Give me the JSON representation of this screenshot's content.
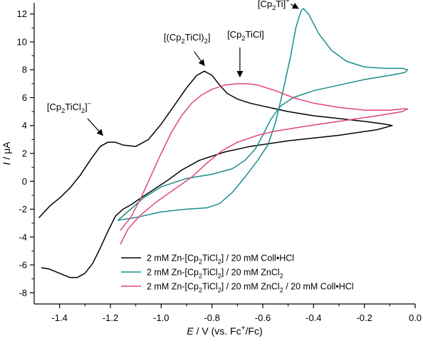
{
  "chart_data": {
    "type": "line",
    "xlabel_parts": [
      "E",
      " / V (vs. Fc",
      "+",
      "/Fc)"
    ],
    "ylabel_parts": [
      "I",
      " / μA"
    ],
    "xlim": [
      -1.5,
      0.0
    ],
    "ylim": [
      -8.8,
      12.8
    ],
    "xticks": [
      -1.4,
      -1.2,
      -1.0,
      -0.8,
      -0.6,
      -0.4,
      -0.2,
      0.0
    ],
    "xtick_labels": [
      "-1.4",
      "-1.2",
      "-1.0",
      "-0.8",
      "-0.6",
      "-0.4",
      "-0.2",
      "0.0"
    ],
    "yticks": [
      -8,
      -6,
      -4,
      -2,
      0,
      2,
      4,
      6,
      8,
      10,
      12
    ],
    "ytick_labels": [
      "-8",
      "-6",
      "-4",
      "-2",
      "0",
      "2",
      "4",
      "6",
      "8",
      "10",
      "12"
    ],
    "grid": false,
    "legend_position": "bottom-right",
    "series": [
      {
        "name_parts": [
          "2 mM Zn-[Cp",
          "2",
          "TiCl",
          "2",
          "] / 20 mM Coll•HCl"
        ],
        "color": "#000000",
        "points": [
          [
            -1.48,
            -2.6
          ],
          [
            -1.44,
            -1.8
          ],
          [
            -1.4,
            -1.2
          ],
          [
            -1.36,
            -0.5
          ],
          [
            -1.32,
            0.4
          ],
          [
            -1.28,
            1.5
          ],
          [
            -1.24,
            2.5
          ],
          [
            -1.21,
            2.8
          ],
          [
            -1.18,
            2.8
          ],
          [
            -1.15,
            2.6
          ],
          [
            -1.1,
            2.5
          ],
          [
            -1.05,
            3.0
          ],
          [
            -1.0,
            4.1
          ],
          [
            -0.95,
            5.4
          ],
          [
            -0.9,
            6.7
          ],
          [
            -0.86,
            7.6
          ],
          [
            -0.83,
            7.9
          ],
          [
            -0.8,
            7.6
          ],
          [
            -0.77,
            6.9
          ],
          [
            -0.74,
            6.3
          ],
          [
            -0.7,
            5.9
          ],
          [
            -0.65,
            5.6
          ],
          [
            -0.6,
            5.4
          ],
          [
            -0.5,
            5.0
          ],
          [
            -0.4,
            4.7
          ],
          [
            -0.3,
            4.5
          ],
          [
            -0.2,
            4.3
          ],
          [
            -0.12,
            4.1
          ],
          [
            -0.09,
            4.0
          ],
          [
            -0.15,
            3.7
          ],
          [
            -0.3,
            3.3
          ],
          [
            -0.5,
            2.9
          ],
          [
            -0.65,
            2.5
          ],
          [
            -0.75,
            2.1
          ],
          [
            -0.85,
            1.5
          ],
          [
            -0.92,
            0.8
          ],
          [
            -0.98,
            0.0
          ],
          [
            -1.03,
            -0.6
          ],
          [
            -1.08,
            -1.2
          ],
          [
            -1.12,
            -1.7
          ],
          [
            -1.15,
            -2.0
          ],
          [
            -1.18,
            -2.5
          ],
          [
            -1.21,
            -3.6
          ],
          [
            -1.24,
            -4.8
          ],
          [
            -1.27,
            -5.9
          ],
          [
            -1.3,
            -6.6
          ],
          [
            -1.33,
            -6.9
          ],
          [
            -1.36,
            -6.9
          ],
          [
            -1.4,
            -6.6
          ],
          [
            -1.44,
            -6.3
          ],
          [
            -1.47,
            -6.2
          ]
        ]
      },
      {
        "name_parts": [
          "2 mM Zn-[Cp",
          "2",
          "TiCl",
          "2",
          "] / 20 mM ZnCl",
          "2",
          ""
        ],
        "color": "#1a8c8c",
        "points": [
          [
            -1.17,
            -2.8
          ],
          [
            -1.1,
            -2.6
          ],
          [
            -1.0,
            -2.2
          ],
          [
            -0.9,
            -2.0
          ],
          [
            -0.82,
            -1.9
          ],
          [
            -0.77,
            -1.6
          ],
          [
            -0.72,
            -0.8
          ],
          [
            -0.67,
            0.3
          ],
          [
            -0.62,
            1.5
          ],
          [
            -0.58,
            2.6
          ],
          [
            -0.55,
            4.2
          ],
          [
            -0.52,
            6.5
          ],
          [
            -0.49,
            9.0
          ],
          [
            -0.47,
            11.0
          ],
          [
            -0.45,
            12.2
          ],
          [
            -0.44,
            12.4
          ],
          [
            -0.42,
            12.0
          ],
          [
            -0.38,
            10.6
          ],
          [
            -0.33,
            9.4
          ],
          [
            -0.27,
            8.6
          ],
          [
            -0.2,
            8.2
          ],
          [
            -0.12,
            8.1
          ],
          [
            -0.05,
            8.1
          ],
          [
            -0.03,
            8.0
          ],
          [
            -0.04,
            7.8
          ],
          [
            -0.1,
            7.6
          ],
          [
            -0.2,
            7.3
          ],
          [
            -0.3,
            6.9
          ],
          [
            -0.4,
            6.5
          ],
          [
            -0.48,
            6.0
          ],
          [
            -0.53,
            5.4
          ],
          [
            -0.57,
            4.4
          ],
          [
            -0.6,
            3.3
          ],
          [
            -0.63,
            2.3
          ],
          [
            -0.67,
            1.5
          ],
          [
            -0.72,
            0.9
          ],
          [
            -0.8,
            0.5
          ],
          [
            -0.9,
            0.2
          ],
          [
            -1.0,
            -0.4
          ],
          [
            -1.07,
            -1.2
          ],
          [
            -1.12,
            -2.0
          ],
          [
            -1.17,
            -2.8
          ]
        ]
      },
      {
        "name_parts": [
          "2 mM Zn-[Cp",
          "2",
          "TiCl",
          "2",
          "] / 20 mM ZnCl",
          "2",
          " / 20 mM Coll•HCl"
        ],
        "color": "#e0457a",
        "points": [
          [
            -1.16,
            -3.5
          ],
          [
            -1.12,
            -2.6
          ],
          [
            -1.08,
            -1.2
          ],
          [
            -1.04,
            0.4
          ],
          [
            -1.0,
            2.0
          ],
          [
            -0.96,
            3.5
          ],
          [
            -0.92,
            4.7
          ],
          [
            -0.88,
            5.6
          ],
          [
            -0.84,
            6.2
          ],
          [
            -0.8,
            6.6
          ],
          [
            -0.75,
            6.9
          ],
          [
            -0.7,
            7.0
          ],
          [
            -0.66,
            7.0
          ],
          [
            -0.62,
            6.9
          ],
          [
            -0.55,
            6.5
          ],
          [
            -0.48,
            6.0
          ],
          [
            -0.4,
            5.6
          ],
          [
            -0.3,
            5.3
          ],
          [
            -0.2,
            5.1
          ],
          [
            -0.1,
            5.1
          ],
          [
            -0.05,
            5.2
          ],
          [
            -0.03,
            5.2
          ],
          [
            -0.05,
            5.0
          ],
          [
            -0.15,
            4.7
          ],
          [
            -0.3,
            4.3
          ],
          [
            -0.45,
            3.9
          ],
          [
            -0.55,
            3.6
          ],
          [
            -0.62,
            3.3
          ],
          [
            -0.7,
            2.8
          ],
          [
            -0.76,
            2.2
          ],
          [
            -0.82,
            1.3
          ],
          [
            -0.88,
            0.3
          ],
          [
            -0.95,
            -0.6
          ],
          [
            -1.02,
            -1.5
          ],
          [
            -1.08,
            -2.4
          ],
          [
            -1.13,
            -3.4
          ],
          [
            -1.16,
            -4.5
          ]
        ]
      }
    ],
    "annotations": [
      {
        "parts": [
          "[Cp",
          "2",
          "TiCl",
          "2",
          "]",
          "−",
          ""
        ],
        "sup_index": 5,
        "anchor": "start",
        "x": -1.45,
        "y": 5.1,
        "arrow_from": [
          -1.29,
          4.5
        ],
        "arrow_to": [
          -1.23,
          3.3
        ]
      },
      {
        "parts": [
          "[(Cp",
          "2",
          "TiCl)",
          "2",
          "]"
        ],
        "anchor": "start",
        "x": -0.99,
        "y": 10.1,
        "arrow_from": [
          -0.87,
          9.3
        ],
        "arrow_to": [
          -0.83,
          8.3
        ]
      },
      {
        "parts": [
          "[Cp",
          "2",
          "TiCl]"
        ],
        "anchor": "start",
        "x": -0.74,
        "y": 10.3,
        "arrow_from": [
          -0.69,
          9.6
        ],
        "arrow_to": [
          -0.69,
          7.5
        ]
      },
      {
        "parts": [
          "[Cp",
          "2",
          "Ti]",
          "+",
          ""
        ],
        "sup_index": 3,
        "anchor": "start",
        "x": -0.62,
        "y": 12.5,
        "arrow_from": [
          -0.49,
          12.7
        ],
        "arrow_to": [
          -0.46,
          12.4
        ]
      }
    ]
  }
}
